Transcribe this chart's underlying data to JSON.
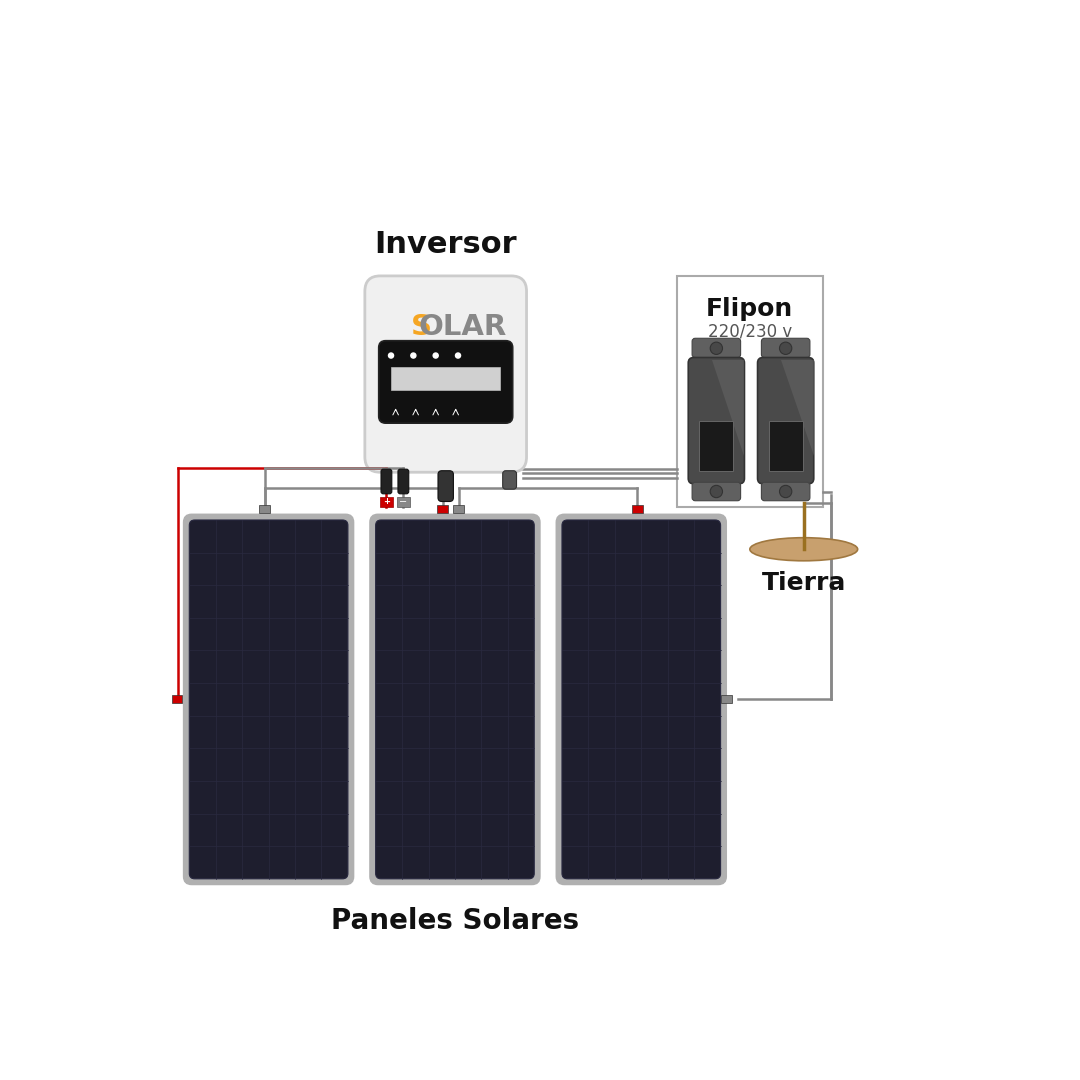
{
  "bg_color": "#ffffff",
  "inversor_label": "Inversor",
  "flipon_label": "Flipon",
  "flipon_sublabel": "220/230 v",
  "paneles_label": "Paneles Solares",
  "tierra_label": "Tierra",
  "solar_s_color": "#F5A623",
  "solar_rest_color": "#888888",
  "inversor_body_color": "#F0F0F0",
  "inversor_border_color": "#CCCCCC",
  "panel_body_color": "#1e1e2e",
  "panel_frame_color": "#b0b0b0",
  "panel_grid_color": "#2a2a40",
  "flipon_body_color": "#4a4a4a",
  "wire_color_ac": "#888888",
  "wire_color_dc_pos": "#cc0000",
  "wire_color_dc_neg": "#888888",
  "ground_color": "#c8a06e",
  "connector_red": "#cc0000",
  "connector_gray": "#888888",
  "connector_dark": "#333333"
}
